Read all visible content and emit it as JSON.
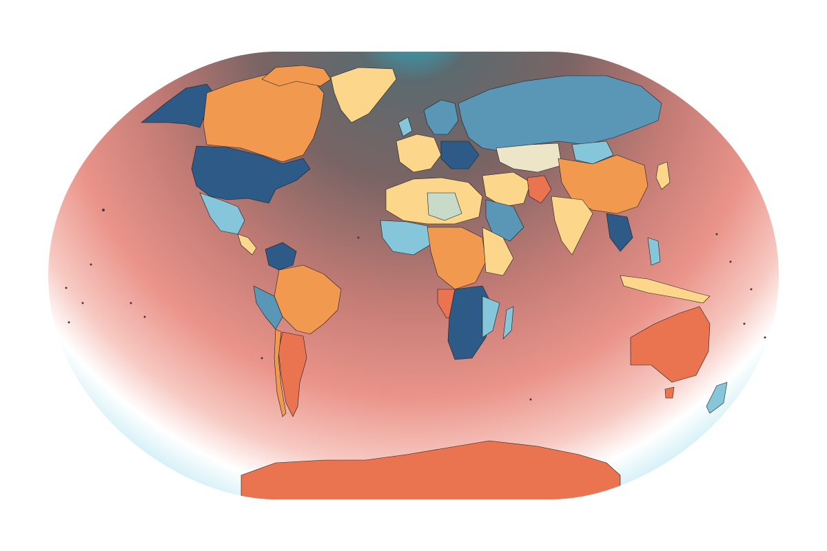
{
  "map": {
    "projection": "winkel-tripel",
    "background_gradient": {
      "pole_colors": [
        "#20bddf",
        "#7a6464"
      ],
      "mid_colors": [
        "#c07a74",
        "#ea948a",
        "#f5b5ac"
      ],
      "equator_side_colors": [
        "#ffffff",
        "#bfe9f3"
      ],
      "outside_color": "#ffffff"
    },
    "palette": {
      "dark_blue": "#2d5a86",
      "steel_blue": "#5a97b7",
      "light_blue": "#85c6da",
      "orange": "#f19a4f",
      "red_orange": "#ea7350",
      "light_yellow": "#fcd68a",
      "pale_cream": "#ece5c7",
      "pale_green": "#c8dbc9",
      "outline": "#1a1a1a"
    }
  }
}
